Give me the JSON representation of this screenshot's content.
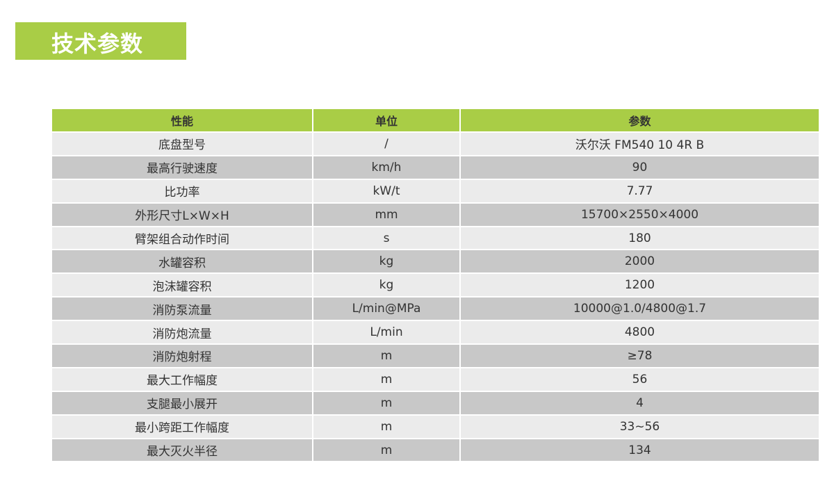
{
  "title": "技术参数",
  "colors": {
    "accent": "#a9cd46",
    "row_light": "#ebebeb",
    "row_dark": "#c8c8c8"
  },
  "table": {
    "headers": [
      "性能",
      "单位",
      "参数"
    ],
    "rows": [
      [
        "底盘型号",
        "/",
        "沃尔沃 FM540 10 4R B"
      ],
      [
        "最高行驶速度",
        "km/h",
        "90"
      ],
      [
        "比功率",
        "kW/t",
        "7.77"
      ],
      [
        "外形尺寸L×W×H",
        "mm",
        "15700×2550×4000"
      ],
      [
        "臂架组合动作时间",
        "s",
        "180"
      ],
      [
        "水罐容积",
        "kg",
        "2000"
      ],
      [
        "泡沫罐容积",
        "kg",
        "1200"
      ],
      [
        "消防泵流量",
        "L/min@MPa",
        "10000@1.0/4800@1.7"
      ],
      [
        "消防炮流量",
        "L/min",
        "4800"
      ],
      [
        "消防炮射程",
        "m",
        "≥78"
      ],
      [
        "最大工作幅度",
        "m",
        "56"
      ],
      [
        "支腿最小展开",
        "m",
        "4"
      ],
      [
        "最小跨距工作幅度",
        "m",
        "33~56"
      ],
      [
        "最大灭火半径",
        "m",
        "134"
      ]
    ]
  }
}
